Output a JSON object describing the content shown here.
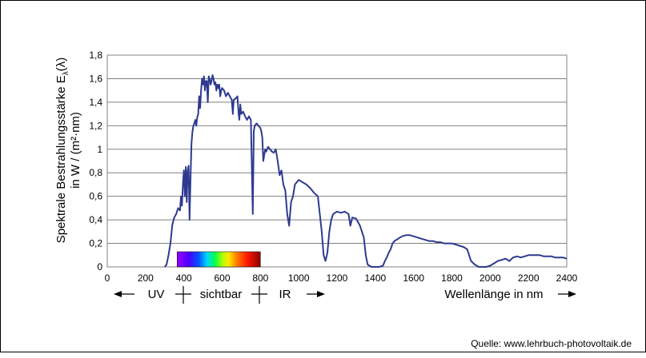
{
  "chart_data": {
    "type": "line",
    "ylabel_line1": "Spektrale  Bestrahlungsstärke  E",
    "ylabel_sub": "λ",
    "ylabel_paren": "(λ)",
    "ylabel_line2": "in W / (m²·nm)",
    "xlabel": "Wellenlänge  in nm",
    "xlim": [
      0,
      2400
    ],
    "ylim": [
      0,
      1.8
    ],
    "x_ticks": [
      "0",
      "200",
      "400",
      "600",
      "800",
      "1000",
      "1200",
      "1400",
      "1600",
      "1800",
      "2000",
      "2200",
      "2400"
    ],
    "y_ticks": [
      "0",
      "0,2",
      "0,4",
      "0,6",
      "0,8",
      "1",
      "1,2",
      "1,4",
      "1,6",
      "1,8"
    ],
    "grid": "horizontal",
    "line_color": "#2e3a8f",
    "regions": {
      "uv": "UV",
      "visible": "sichtbar",
      "ir": "IR"
    },
    "visible_band": [
      380,
      780
    ],
    "source": "Quelle: www.lehrbuch-photovoltaik.de",
    "series": [
      {
        "values": [
          [
            300,
            0.0
          ],
          [
            310,
            0.02
          ],
          [
            320,
            0.1
          ],
          [
            330,
            0.2
          ],
          [
            340,
            0.36
          ],
          [
            350,
            0.42
          ],
          [
            360,
            0.45
          ],
          [
            370,
            0.5
          ],
          [
            380,
            0.48
          ],
          [
            385,
            0.6
          ],
          [
            390,
            0.52
          ],
          [
            395,
            0.7
          ],
          [
            400,
            0.82
          ],
          [
            405,
            0.6
          ],
          [
            410,
            0.85
          ],
          [
            415,
            0.55
          ],
          [
            420,
            0.82
          ],
          [
            425,
            0.86
          ],
          [
            430,
            0.4
          ],
          [
            435,
            0.75
          ],
          [
            440,
            1.05
          ],
          [
            445,
            1.15
          ],
          [
            450,
            1.2
          ],
          [
            455,
            1.22
          ],
          [
            460,
            1.25
          ],
          [
            465,
            1.2
          ],
          [
            470,
            1.27
          ],
          [
            475,
            1.3
          ],
          [
            480,
            1.45
          ],
          [
            485,
            1.35
          ],
          [
            490,
            1.5
          ],
          [
            495,
            1.6
          ],
          [
            500,
            1.55
          ],
          [
            505,
            1.62
          ],
          [
            510,
            1.5
          ],
          [
            515,
            1.58
          ],
          [
            520,
            1.58
          ],
          [
            525,
            1.4
          ],
          [
            530,
            1.62
          ],
          [
            535,
            1.6
          ],
          [
            540,
            1.55
          ],
          [
            545,
            1.58
          ],
          [
            550,
            1.63
          ],
          [
            555,
            1.6
          ],
          [
            560,
            1.55
          ],
          [
            565,
            1.57
          ],
          [
            570,
            1.5
          ],
          [
            575,
            1.55
          ],
          [
            580,
            1.52
          ],
          [
            585,
            1.55
          ],
          [
            590,
            1.45
          ],
          [
            595,
            1.5
          ],
          [
            600,
            1.52
          ],
          [
            610,
            1.5
          ],
          [
            620,
            1.45
          ],
          [
            630,
            1.48
          ],
          [
            640,
            1.45
          ],
          [
            650,
            1.42
          ],
          [
            656,
            1.3
          ],
          [
            660,
            1.42
          ],
          [
            670,
            1.43
          ],
          [
            680,
            1.45
          ],
          [
            686,
            1.3
          ],
          [
            690,
            1.25
          ],
          [
            695,
            1.38
          ],
          [
            700,
            1.3
          ],
          [
            710,
            1.32
          ],
          [
            720,
            1.28
          ],
          [
            730,
            1.25
          ],
          [
            740,
            1.28
          ],
          [
            750,
            1.25
          ],
          [
            760,
            0.45
          ],
          [
            765,
            1.15
          ],
          [
            770,
            1.2
          ],
          [
            780,
            1.22
          ],
          [
            790,
            1.2
          ],
          [
            800,
            1.18
          ],
          [
            805,
            1.15
          ],
          [
            810,
            1.1
          ],
          [
            815,
            0.9
          ],
          [
            820,
            0.95
          ],
          [
            825,
            1.0
          ],
          [
            830,
            0.98
          ],
          [
            840,
            1.02
          ],
          [
            850,
            1.0
          ],
          [
            860,
            0.98
          ],
          [
            870,
            0.97
          ],
          [
            880,
            1.0
          ],
          [
            890,
            0.9
          ],
          [
            900,
            0.78
          ],
          [
            910,
            0.82
          ],
          [
            920,
            0.7
          ],
          [
            930,
            0.65
          ],
          [
            940,
            0.45
          ],
          [
            950,
            0.35
          ],
          [
            960,
            0.55
          ],
          [
            970,
            0.6
          ],
          [
            980,
            0.7
          ],
          [
            990,
            0.72
          ],
          [
            1000,
            0.74
          ],
          [
            1020,
            0.72
          ],
          [
            1040,
            0.7
          ],
          [
            1060,
            0.67
          ],
          [
            1080,
            0.63
          ],
          [
            1100,
            0.6
          ],
          [
            1110,
            0.45
          ],
          [
            1120,
            0.3
          ],
          [
            1130,
            0.1
          ],
          [
            1140,
            0.05
          ],
          [
            1150,
            0.12
          ],
          [
            1160,
            0.3
          ],
          [
            1170,
            0.4
          ],
          [
            1180,
            0.45
          ],
          [
            1190,
            0.46
          ],
          [
            1200,
            0.47
          ],
          [
            1220,
            0.46
          ],
          [
            1240,
            0.47
          ],
          [
            1260,
            0.45
          ],
          [
            1270,
            0.35
          ],
          [
            1280,
            0.42
          ],
          [
            1300,
            0.41
          ],
          [
            1320,
            0.35
          ],
          [
            1340,
            0.25
          ],
          [
            1350,
            0.1
          ],
          [
            1360,
            0.02
          ],
          [
            1380,
            0.0
          ],
          [
            1400,
            0.0
          ],
          [
            1420,
            0.0
          ],
          [
            1440,
            0.01
          ],
          [
            1450,
            0.05
          ],
          [
            1460,
            0.08
          ],
          [
            1470,
            0.12
          ],
          [
            1480,
            0.15
          ],
          [
            1490,
            0.2
          ],
          [
            1500,
            0.22
          ],
          [
            1520,
            0.24
          ],
          [
            1540,
            0.26
          ],
          [
            1560,
            0.27
          ],
          [
            1580,
            0.27
          ],
          [
            1600,
            0.26
          ],
          [
            1620,
            0.25
          ],
          [
            1640,
            0.24
          ],
          [
            1660,
            0.23
          ],
          [
            1680,
            0.22
          ],
          [
            1700,
            0.22
          ],
          [
            1720,
            0.21
          ],
          [
            1740,
            0.21
          ],
          [
            1760,
            0.2
          ],
          [
            1780,
            0.2
          ],
          [
            1800,
            0.2
          ],
          [
            1820,
            0.19
          ],
          [
            1840,
            0.18
          ],
          [
            1860,
            0.17
          ],
          [
            1880,
            0.15
          ],
          [
            1900,
            0.05
          ],
          [
            1920,
            0.02
          ],
          [
            1940,
            0.0
          ],
          [
            1960,
            0.0
          ],
          [
            1980,
            0.0
          ],
          [
            2000,
            0.01
          ],
          [
            2020,
            0.03
          ],
          [
            2040,
            0.05
          ],
          [
            2060,
            0.06
          ],
          [
            2080,
            0.07
          ],
          [
            2100,
            0.05
          ],
          [
            2120,
            0.08
          ],
          [
            2140,
            0.09
          ],
          [
            2160,
            0.08
          ],
          [
            2180,
            0.09
          ],
          [
            2200,
            0.1
          ],
          [
            2220,
            0.1
          ],
          [
            2240,
            0.1
          ],
          [
            2260,
            0.1
          ],
          [
            2280,
            0.09
          ],
          [
            2300,
            0.09
          ],
          [
            2320,
            0.09
          ],
          [
            2340,
            0.08
          ],
          [
            2360,
            0.08
          ],
          [
            2380,
            0.08
          ],
          [
            2400,
            0.07
          ]
        ]
      }
    ]
  }
}
